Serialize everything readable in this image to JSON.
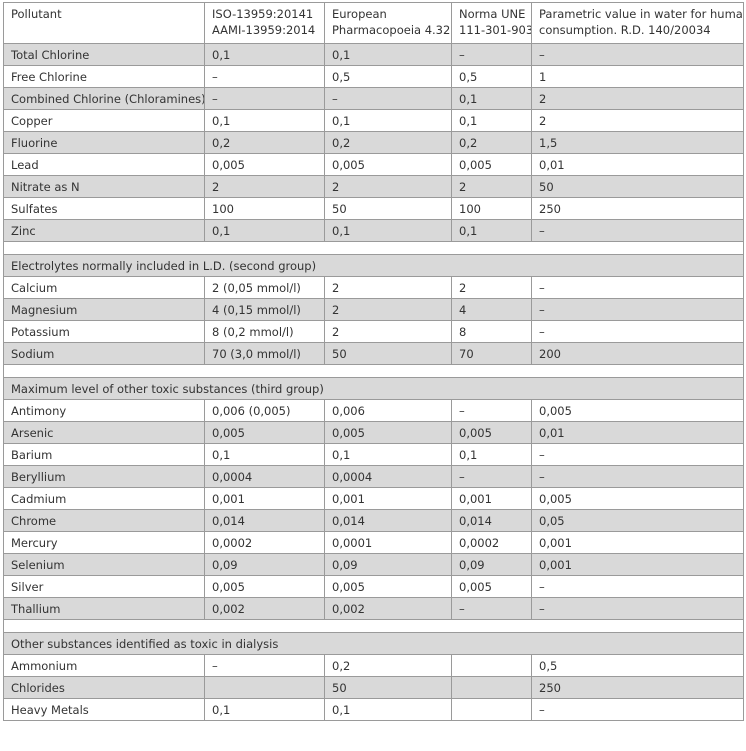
{
  "header": [
    [
      "Pollutant"
    ],
    [
      "ISO-13959:20141",
      "AAMI-13959:2014"
    ],
    [
      "European",
      "Pharmacopoeia 4.32"
    ],
    [
      "Norma UNE",
      "111-301-903"
    ],
    [
      "Parametric value in water for human",
      "consumption. R.D. 140/20034"
    ]
  ],
  "sections": [
    {
      "rows": [
        [
          "Total Chlorine",
          "0,1",
          "0,1",
          "–",
          "–"
        ],
        [
          "Free Chlorine",
          "–",
          "0,5",
          "0,5",
          "1"
        ],
        [
          "Combined Chlorine (Chloramines)",
          "–",
          "–",
          "0,1",
          "2"
        ],
        [
          "Copper",
          "0,1",
          "0,1",
          "0,1",
          "2"
        ],
        [
          "Fluorine",
          "0,2",
          "0,2",
          "0,2",
          "1,5"
        ],
        [
          "Lead",
          "0,005",
          "0,005",
          "0,005",
          "0,01"
        ],
        [
          "Nitrate as N",
          "2",
          "2",
          "2",
          "50"
        ],
        [
          "Sulfates",
          "100",
          "50",
          "100",
          "250"
        ],
        [
          "Zinc",
          "0,1",
          "0,1",
          "0,1",
          "–"
        ]
      ]
    },
    {
      "title": "Electrolytes normally included in L.D. (second group)",
      "rows": [
        [
          "Calcium",
          "2 (0,05 mmol/l)",
          "2",
          "2",
          "–"
        ],
        [
          "Magnesium",
          "4 (0,15 mmol/l)",
          "2",
          "4",
          "–"
        ],
        [
          "Potassium",
          "8 (0,2 mmol/l)",
          "2",
          "8",
          "–"
        ],
        [
          "Sodium",
          "70 (3,0 mmol/l)",
          "50",
          "70",
          "200"
        ]
      ]
    },
    {
      "title": "Maximum level of other toxic substances (third group)",
      "rows": [
        [
          "Antimony",
          "0,006 (0,005)",
          "0,006",
          "–",
          "0,005"
        ],
        [
          "Arsenic",
          "0,005",
          "0,005",
          "0,005",
          "0,01"
        ],
        [
          "Barium",
          "0,1",
          "0,1",
          "0,1",
          "–"
        ],
        [
          "Beryllium",
          "0,0004",
          "0,0004",
          "–",
          "–"
        ],
        [
          "Cadmium",
          "0,001",
          "0,001",
          "0,001",
          "0,005"
        ],
        [
          "Chrome",
          "0,014",
          "0,014",
          "0,014",
          "0,05"
        ],
        [
          "Mercury",
          "0,0002",
          "0,0001",
          "0,0002",
          "0,001"
        ],
        [
          "Selenium",
          "0,09",
          "0,09",
          "0,09",
          "0,001"
        ],
        [
          "Silver",
          "0,005",
          "0,005",
          "0,005",
          "–"
        ],
        [
          "Thallium",
          "0,002",
          "0,002",
          "–",
          "–"
        ]
      ]
    },
    {
      "title": "Other substances identified as toxic in dialysis",
      "rows": [
        [
          "Ammonium",
          "–",
          "0,2",
          null,
          "0,5"
        ],
        [
          "Chlorides",
          null,
          "50",
          null,
          "250"
        ],
        [
          "Heavy Metals",
          "0,1",
          "0,1",
          null,
          "–"
        ]
      ]
    }
  ]
}
